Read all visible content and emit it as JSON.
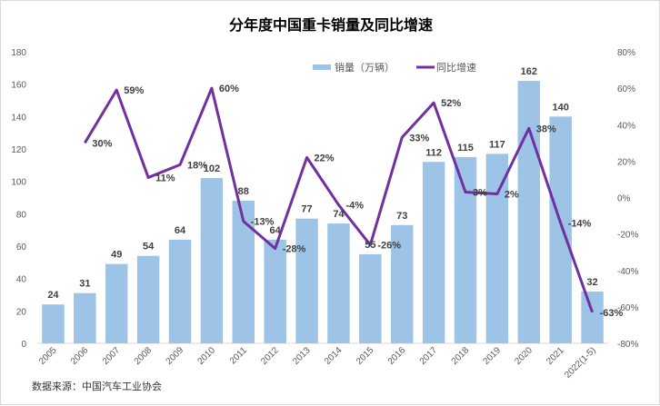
{
  "chart_data": {
    "type": "bar+line",
    "title": "分年度中国重卡销量及同比增速",
    "categories": [
      "2005",
      "2006",
      "2007",
      "2008",
      "2009",
      "2010",
      "2011",
      "2012",
      "2013",
      "2014",
      "2015",
      "2016",
      "2017",
      "2018",
      "2019",
      "2020",
      "2021",
      "2022(1-5)"
    ],
    "series": [
      {
        "name": "销量（万辆）",
        "type": "bar",
        "axis": "left",
        "color": "#9dc3e6",
        "values": [
          24,
          31,
          49,
          54,
          64,
          102,
          88,
          64,
          77,
          74,
          55,
          73,
          112,
          115,
          117,
          162,
          140,
          32
        ],
        "labels": [
          "24",
          "31",
          "49",
          "54",
          "64",
          "102",
          "88",
          "64",
          "77",
          "74",
          "55",
          "73",
          "112",
          "115",
          "117",
          "162",
          "140",
          "32"
        ]
      },
      {
        "name": "同比增速",
        "type": "line",
        "axis": "right",
        "color": "#7030a0",
        "values": [
          null,
          30,
          59,
          11,
          18,
          60,
          -13,
          -28,
          22,
          -4,
          -26,
          33,
          52,
          3,
          2,
          38,
          -14,
          -63
        ],
        "labels": [
          "",
          "30%",
          "59%",
          "11%",
          "18%",
          "60%",
          "-13%",
          "-28%",
          "22%",
          "-4%",
          "-26%",
          "33%",
          "52%",
          "3%",
          "2%",
          "38%",
          "-14%",
          "-63%"
        ]
      }
    ],
    "ylim_left": [
      0,
      180
    ],
    "yticks_left": [
      "0",
      "20",
      "40",
      "60",
      "80",
      "100",
      "120",
      "140",
      "160",
      "180"
    ],
    "ylim_right": [
      -80,
      80
    ],
    "yticks_right": [
      "-80%",
      "-60%",
      "-40%",
      "-20%",
      "0%",
      "20%",
      "40%",
      "60%",
      "80%"
    ],
    "grid": false,
    "legend": "top-center",
    "source": "数据来源：中国汽车工业协会"
  }
}
